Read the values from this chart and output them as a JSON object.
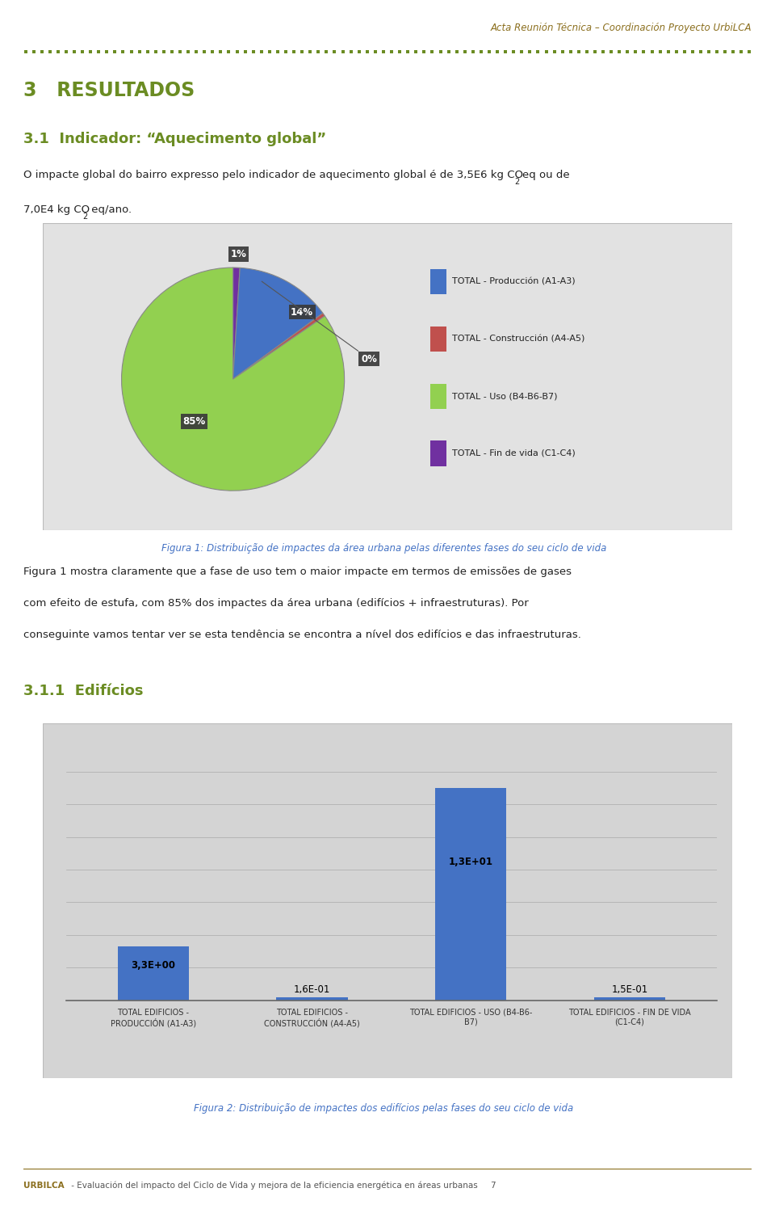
{
  "page_width": 9.6,
  "page_height": 14.91,
  "bg_color": "#ffffff",
  "header_text": "Acta Reunión Técnica – Coordinación Proyecto UrbiLCA",
  "header_color": "#8B6F1E",
  "header_fontsize": 8.5,
  "diamond_color": "#6B8C23",
  "section_title": "3   RESULTADOS",
  "section_title_color": "#6B8C23",
  "section_title_fontsize": 17,
  "subsection_title": "3.1  Indicador: “Aquecimento global”",
  "subsection_title_color": "#6B8C23",
  "subsection_title_fontsize": 13,
  "body_text_color": "#222222",
  "body_text_fontsize": 9.5,
  "pie_bg_color": "#e0e0e0",
  "pie_values": [
    1,
    14,
    0.5,
    85
  ],
  "pie_colors": [
    "#7030A0",
    "#4472C4",
    "#C0504D",
    "#92D050"
  ],
  "pie_legend_labels": [
    "TOTAL - Producción (A1-A3)",
    "TOTAL - Construcción (A4-A5)",
    "TOTAL - Uso (B4-B6-B7)",
    "TOTAL - Fin de vida (C1-C4)"
  ],
  "pie_legend_colors": [
    "#4472C4",
    "#C0504D",
    "#92D050",
    "#7030A0"
  ],
  "fig1_caption": "Figura 1: Distribuição de impactes da área urbana pelas diferentes fases do seu ciclo de vida",
  "fig1_caption_color": "#4472C4",
  "fig1_caption_fontsize": 8.5,
  "body_text2_line1": "Figura 1 mostra claramente que a fase de uso tem o maior impacte em termos de emissões de gases",
  "body_text2_line2": "com efeito de estufa, com 85% dos impactes da área urbana (edifícios + infraestruturas). Por",
  "body_text2_line3": "conseguinte vamos tentar ver se esta tendência se encontra a nível dos edifícios e das infraestruturas.",
  "subsection2_title": "3.1.1  Edifícios",
  "subsection2_title_color": "#6B8C23",
  "subsection2_title_fontsize": 13,
  "bar_bg_color": "#d4d4d4",
  "bar_categories": [
    "TOTAL EDIFICIOS -\nPRODUCCIÓN (A1-A3)",
    "TOTAL EDIFICIOS -\nCONSTRUCCIÓN (A4-A5)",
    "TOTAL EDIFICIOS - USO (B4-B6-\nB7)",
    "TOTAL EDIFICIOS - FIN DE VIDA\n(C1-C4)"
  ],
  "bar_values": [
    3.3,
    0.16,
    13.0,
    0.15
  ],
  "bar_labels": [
    "3,3E+00",
    "1,6E-01",
    "1,3E+01",
    "1,5E-01"
  ],
  "bar_color": "#4472C4",
  "fig2_caption": "Figura 2: Distribuição de impactes dos edifícios pelas fases do seu ciclo de vida",
  "fig2_caption_color": "#4472C4",
  "fig2_caption_fontsize": 8.5,
  "footer_color_bold": "#8B6F1E",
  "footer_color_rest": "#555555",
  "footer_fontsize": 7.5
}
